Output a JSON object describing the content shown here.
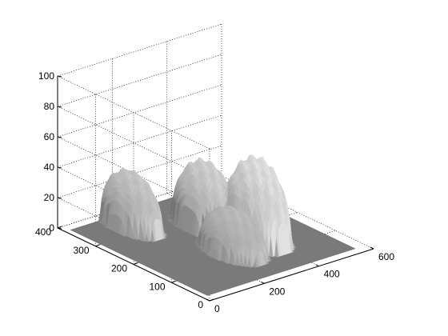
{
  "chart_data": {
    "type": "surface",
    "title": "",
    "xlabel": "",
    "ylabel": "",
    "zlabel": "",
    "grid": true,
    "colormap": "gray",
    "xlim": [
      0,
      600
    ],
    "ylim": [
      0,
      400
    ],
    "zlim": [
      0,
      100
    ],
    "xticks": [
      "0",
      "200",
      "400",
      "600"
    ],
    "yticks": [
      "0",
      "100",
      "200",
      "300",
      "400"
    ],
    "zticks": [
      "0",
      "20",
      "40",
      "60",
      "80",
      "100"
    ],
    "floor_level": 0,
    "peaks": [
      {
        "x": 170,
        "y": 330,
        "z": 35
      },
      {
        "x": 330,
        "y": 250,
        "z": 42
      },
      {
        "x": 280,
        "y": 140,
        "z": 27
      },
      {
        "x": 380,
        "y": 150,
        "z": 53
      }
    ]
  }
}
